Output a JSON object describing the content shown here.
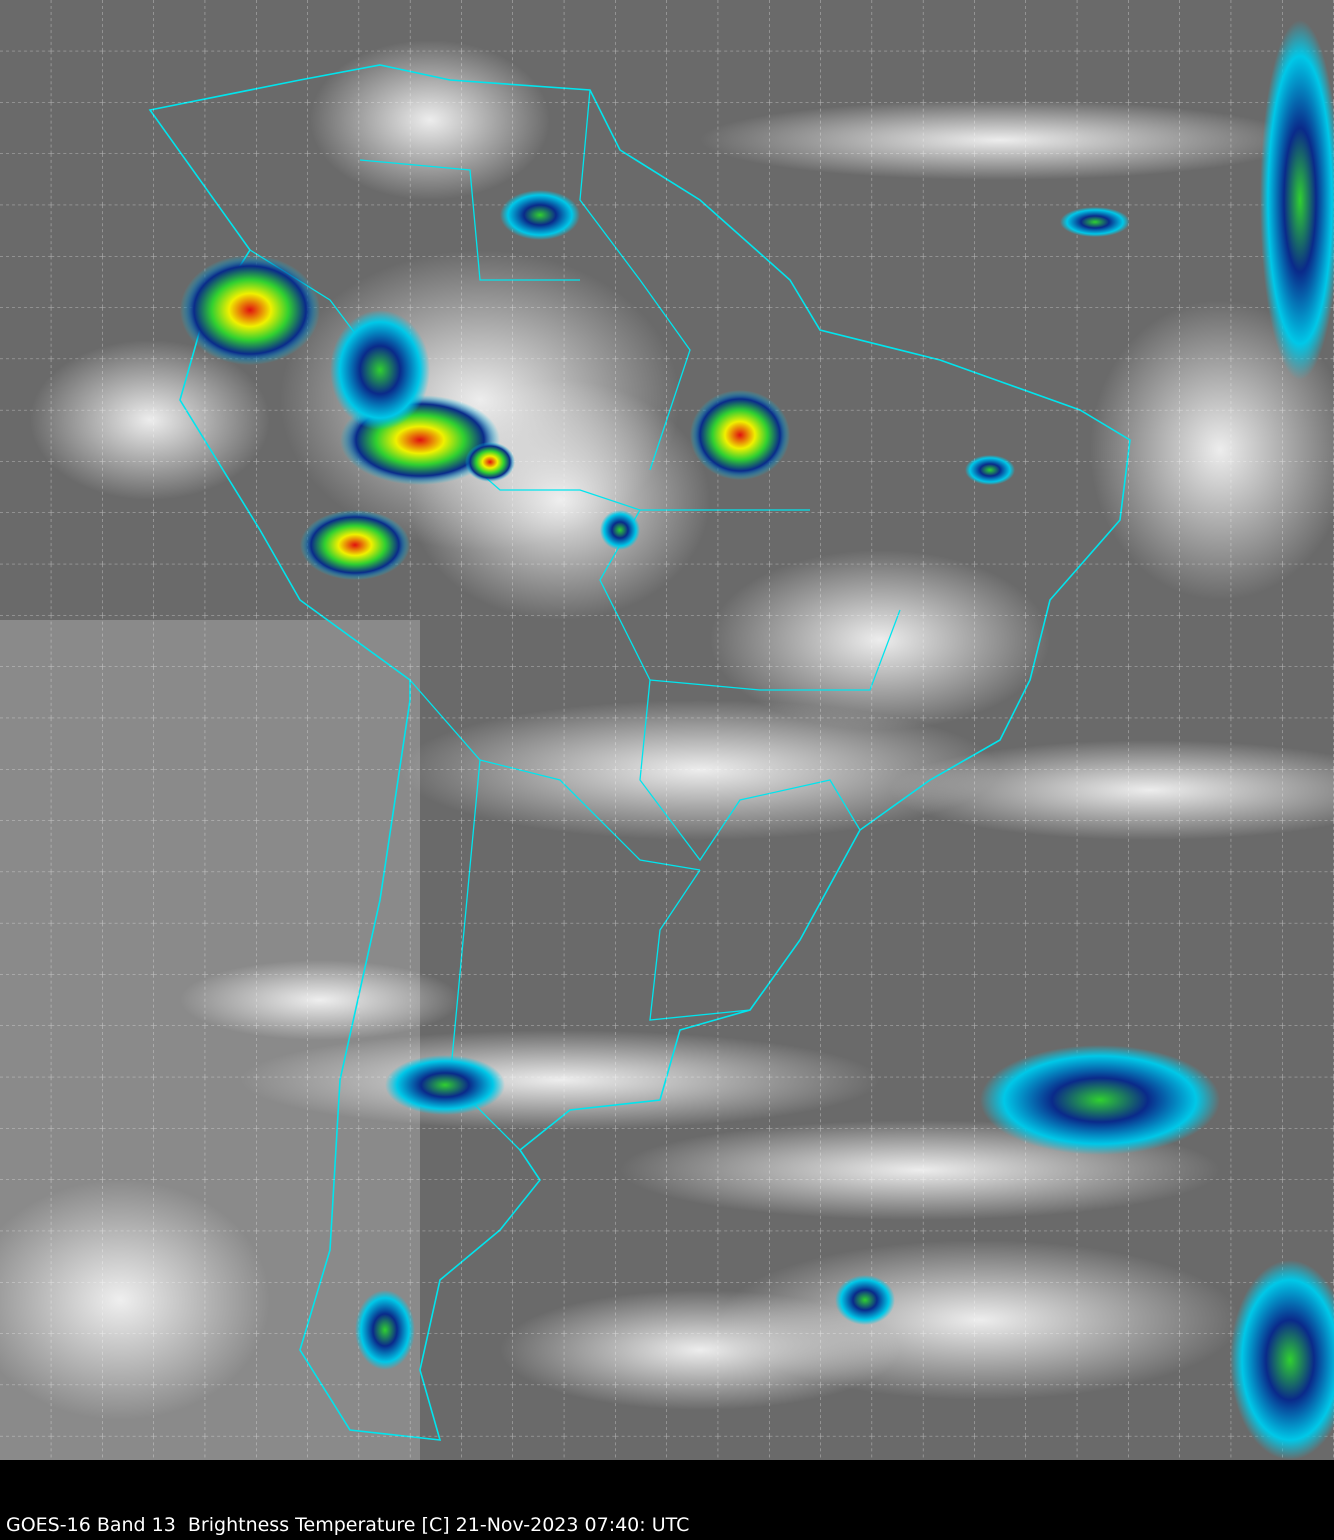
{
  "caption": "GOES-16 Band 13  Brightness Temperature [C] 21-Nov-2023 07:40: UTC",
  "map": {
    "region": "South America",
    "grid": true,
    "colors": {
      "background": "#000000",
      "boundaries": "#00e5ee",
      "grid": "#ffffff",
      "clear_sky": "#6e6e6e",
      "cold_cloud_cyan": "#00c8e8",
      "cold_cloud_blue": "#0a2a8a",
      "cold_cloud_green": "#30d030",
      "cold_cloud_yellow": "#f0f000",
      "cold_cloud_red": "#e01010"
    }
  }
}
